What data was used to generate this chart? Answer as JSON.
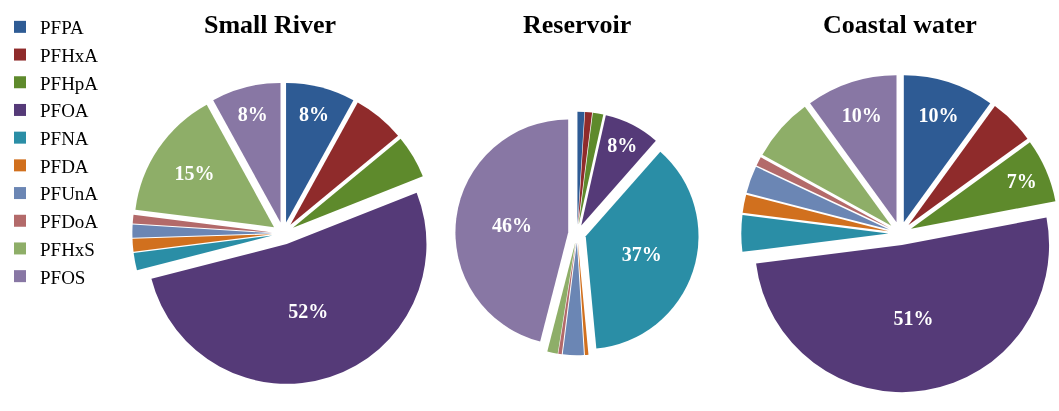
{
  "chart_data": [
    {
      "type": "pie",
      "title": "Small River",
      "legend": "left",
      "categories": [
        "PFPA",
        "PFHxA",
        "PFHpA",
        "PFOA",
        "PFNA",
        "PFDA",
        "PFUnA",
        "PFDoA",
        "PFHxS",
        "PFOS"
      ],
      "values": [
        8,
        6,
        5,
        52,
        2,
        1.5,
        1.5,
        1,
        15,
        8
      ],
      "value_labels": [
        "8%",
        null,
        null,
        "52%",
        null,
        null,
        null,
        null,
        "15%",
        "8%"
      ],
      "colors": [
        "#2e5b94",
        "#8f2b2b",
        "#5e8a2c",
        "#553a78",
        "#2a8ea6",
        "#d1701e",
        "#6b86b4",
        "#b36a6a",
        "#8eae68",
        "#8877a4"
      ]
    },
    {
      "type": "pie",
      "title": "Reservoir",
      "categories": [
        null,
        null,
        null,
        null,
        null,
        null,
        null,
        null,
        null,
        null
      ],
      "values": [
        1,
        1,
        1.5,
        8,
        37,
        0.5,
        3,
        0.5,
        1.5,
        46
      ],
      "value_labels": [
        null,
        null,
        null,
        "8%",
        "37%",
        null,
        null,
        null,
        null,
        "46%"
      ],
      "colors": [
        "#2e5b94",
        "#8f2b2b",
        "#5e8a2c",
        "#553a78",
        "#2a8ea6",
        "#d1701e",
        "#6b86b4",
        "#b36a6a",
        "#8eae68",
        "#8877a4"
      ]
    },
    {
      "type": "pie",
      "title": "Coastal water",
      "categories": [
        null,
        null,
        null,
        null,
        null,
        null,
        null,
        null,
        null,
        null
      ],
      "values": [
        10,
        5,
        7,
        51,
        4,
        2,
        3,
        1,
        7,
        10
      ],
      "value_labels": [
        "10%",
        null,
        "7%",
        "51%",
        null,
        null,
        null,
        null,
        null,
        "10%"
      ],
      "colors": [
        "#2e5b94",
        "#8f2b2b",
        "#5e8a2c",
        "#553a78",
        "#2a8ea6",
        "#d1701e",
        "#6b86b4",
        "#b36a6a",
        "#8eae68",
        "#8877a4"
      ]
    }
  ]
}
